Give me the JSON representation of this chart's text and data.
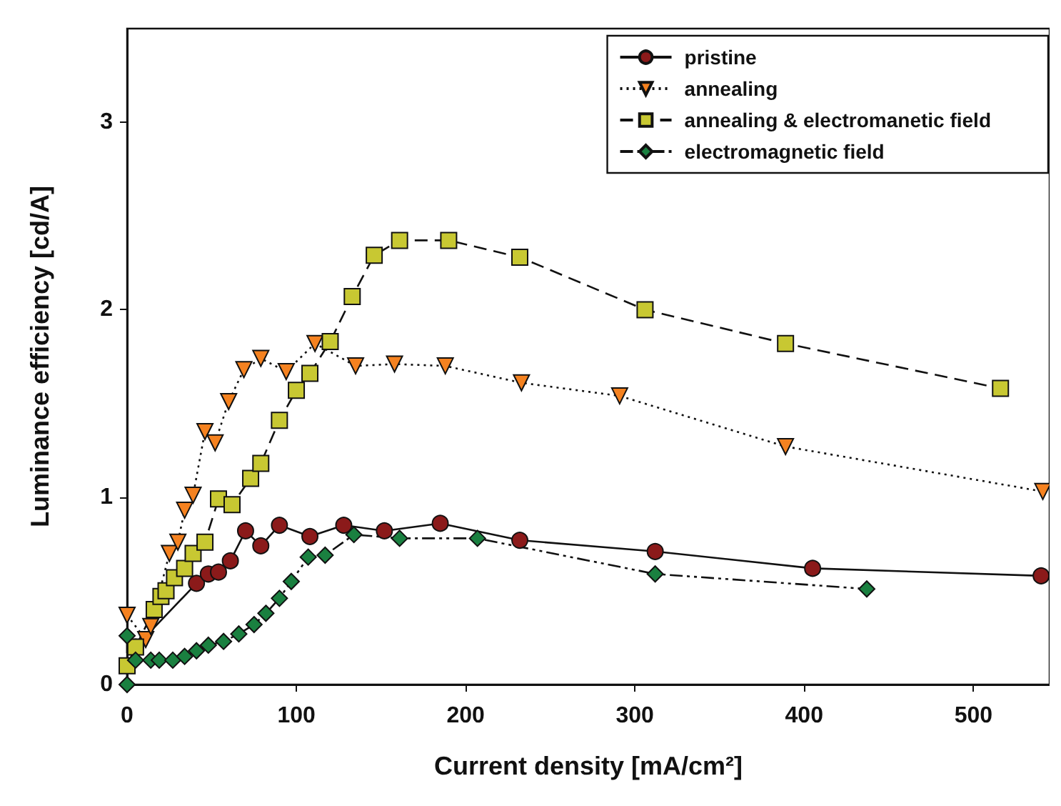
{
  "chart_data": {
    "type": "line",
    "xlabel": "Current density [mA/cm²]",
    "ylabel": "Luminance efficiency [cd/A]",
    "xlim": [
      0,
      545
    ],
    "ylim": [
      0,
      3.5
    ],
    "xticks": [
      0,
      100,
      200,
      300,
      400,
      500
    ],
    "yticks": [
      0,
      1,
      2,
      3
    ],
    "grid": false,
    "legend": "top right",
    "series": [
      {
        "name": "pristine",
        "color": "#8b1a1a",
        "marker": "circle",
        "line_style": "solid",
        "x": [
          5,
          41,
          48,
          54,
          61,
          70,
          79,
          90,
          108,
          128,
          152,
          185,
          232,
          312,
          405,
          540
        ],
        "values": [
          0.2,
          0.54,
          0.59,
          0.6,
          0.66,
          0.82,
          0.74,
          0.85,
          0.79,
          0.85,
          0.82,
          0.86,
          0.77,
          0.71,
          0.62,
          0.58
        ]
      },
      {
        "name": "annealing",
        "color": "#f58220",
        "marker": "triangle",
        "line_style": "dotted",
        "x": [
          0,
          11,
          14,
          25,
          30,
          34,
          39,
          46,
          52,
          60,
          69,
          79,
          94,
          111,
          135,
          158,
          188,
          233,
          291,
          389,
          541
        ],
        "values": [
          0.37,
          0.24,
          0.31,
          0.7,
          0.76,
          0.93,
          1.01,
          1.35,
          1.29,
          1.51,
          1.68,
          1.74,
          1.67,
          1.82,
          1.7,
          1.71,
          1.7,
          1.61,
          1.54,
          1.27,
          1.03
        ]
      },
      {
        "name": "annealing & electromanetic field",
        "color": "#c8c832",
        "marker": "square",
        "line_style": "dashed",
        "x": [
          0,
          5,
          16,
          20,
          23,
          28,
          34,
          39,
          46,
          54,
          62,
          73,
          79,
          90,
          100,
          108,
          120,
          133,
          146,
          161,
          190,
          232,
          306,
          389,
          516
        ],
        "values": [
          0.1,
          0.2,
          0.4,
          0.47,
          0.5,
          0.57,
          0.62,
          0.7,
          0.76,
          0.99,
          0.96,
          1.1,
          1.18,
          1.41,
          1.57,
          1.66,
          1.83,
          2.07,
          2.29,
          2.37,
          2.37,
          2.28,
          2.0,
          1.82,
          1.58
        ]
      },
      {
        "name": "electromagnetic field",
        "color": "#1a8040",
        "marker": "diamond",
        "line_style": "dashdot",
        "x": [
          0,
          0,
          5,
          14,
          19,
          27,
          34,
          41,
          48,
          57,
          66,
          75,
          82,
          90,
          97,
          107,
          117,
          134,
          161,
          207,
          312,
          437
        ],
        "values": [
          0,
          0.26,
          0.13,
          0.13,
          0.13,
          0.13,
          0.15,
          0.18,
          0.21,
          0.23,
          0.27,
          0.32,
          0.38,
          0.46,
          0.55,
          0.68,
          0.69,
          0.8,
          0.78,
          0.78,
          0.59,
          0.51
        ]
      }
    ]
  }
}
